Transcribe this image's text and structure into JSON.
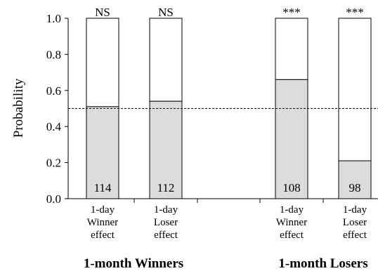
{
  "chart_data": {
    "type": "bar",
    "title": "",
    "xlabel": "",
    "ylabel": "Probability",
    "ylim": [
      0,
      1.0
    ],
    "yticks": [
      "0.0",
      "0.2",
      "0.4",
      "0.6",
      "0.8",
      "1.0"
    ],
    "reference_line": 0.5,
    "bar_fill": "#dcdcdc",
    "bars": [
      {
        "label": [
          "1-day",
          "Winner",
          "effect"
        ],
        "value": 0.51,
        "count": "114",
        "significance": "NS",
        "group": 0
      },
      {
        "label": [
          "1-day",
          "Loser",
          "effect"
        ],
        "value": 0.54,
        "count": "112",
        "significance": "NS",
        "group": 0
      },
      {
        "label": [
          "1-day",
          "Winner",
          "effect"
        ],
        "value": 0.66,
        "count": "108",
        "significance": "***",
        "group": 1
      },
      {
        "label": [
          "1-day",
          "Loser",
          "effect"
        ],
        "value": 0.21,
        "count": "98",
        "significance": "***",
        "group": 1
      }
    ],
    "groups": [
      "1-month Winners",
      "1-month Losers"
    ]
  }
}
